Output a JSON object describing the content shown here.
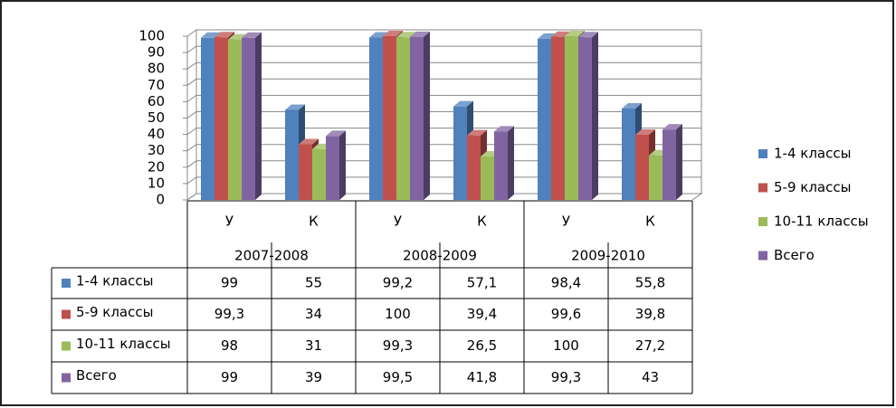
{
  "chart_data": {
    "type": "bar",
    "categories": [
      "У",
      "К",
      "У",
      "К",
      "У",
      "К"
    ],
    "groups": [
      "2007-2008",
      "2008-2009",
      "2009-2010"
    ],
    "series": [
      {
        "name": "1-4 классы",
        "color": "#4f81bd",
        "values": [
          99,
          55,
          99.2,
          57.1,
          98.4,
          55.8
        ],
        "value_labels": [
          "99",
          "55",
          "99,2",
          "57,1",
          "98,4",
          "55,8"
        ]
      },
      {
        "name": "5-9 классы",
        "color": "#c0504d",
        "values": [
          99.3,
          34,
          100,
          39.4,
          99.6,
          39.8
        ],
        "value_labels": [
          "99,3",
          "34",
          "100",
          "39,4",
          "99,6",
          "39,8"
        ]
      },
      {
        "name": "10-11 классы",
        "color": "#9bbb59",
        "values": [
          98,
          31,
          99.3,
          26.5,
          100,
          27.2
        ],
        "value_labels": [
          "98",
          "31",
          "99,3",
          "26,5",
          "100",
          "27,2"
        ]
      },
      {
        "name": "Всего",
        "color": "#8064a2",
        "values": [
          99,
          39,
          99.5,
          41.8,
          99.3,
          43
        ],
        "value_labels": [
          "99",
          "39",
          "99,5",
          "41,8",
          "99,3",
          "43"
        ]
      }
    ],
    "ylim": [
      0,
      100
    ],
    "yticks": [
      0,
      10,
      20,
      30,
      40,
      50,
      60,
      70,
      80,
      90,
      100
    ],
    "grid": true,
    "legend": "right"
  }
}
